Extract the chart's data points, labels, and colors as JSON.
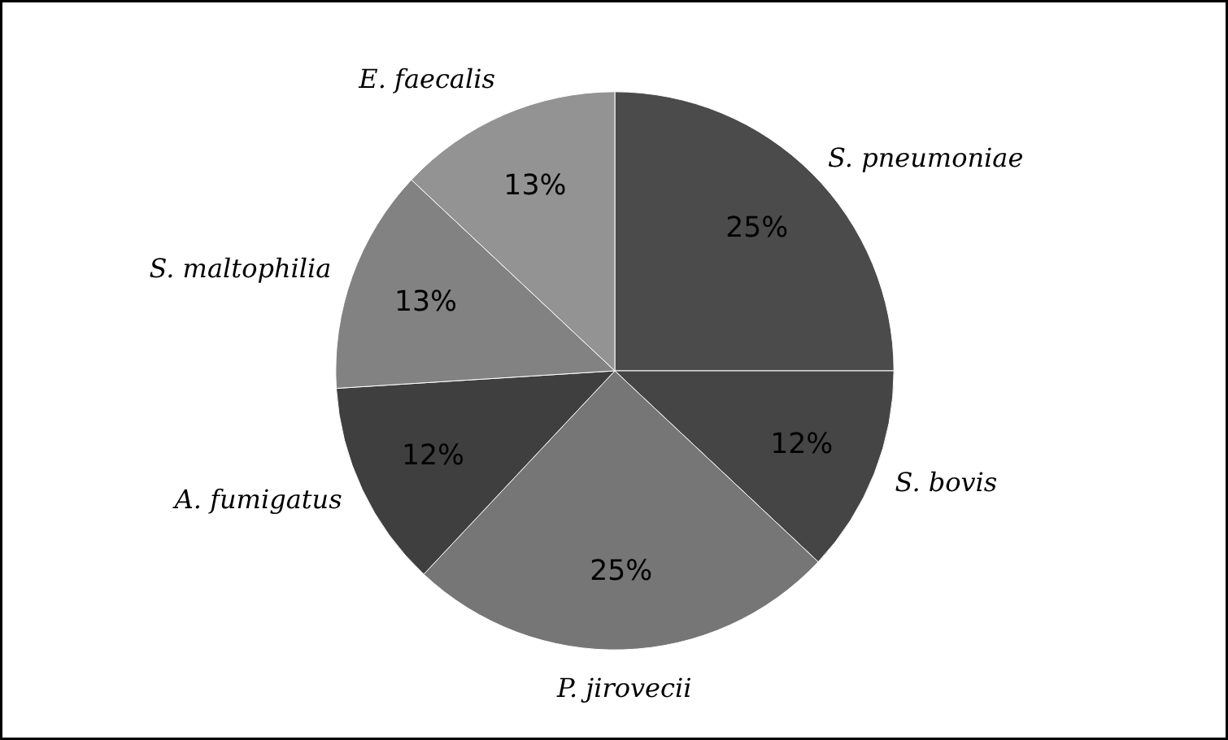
{
  "chart_data": {
    "type": "pie",
    "categories": [
      "S. pneumoniae",
      "S. bovis",
      "P. jirovecii",
      "A. fumigatus",
      "S. maltophilia",
      "E. faecalis"
    ],
    "values": [
      25,
      12,
      25,
      12,
      13,
      13
    ],
    "colors": [
      "#4b4b4b",
      "#454545",
      "#767676",
      "#3f3f3f",
      "#828282",
      "#939393"
    ],
    "value_labels": [
      "25%",
      "12%",
      "25%",
      "12%",
      "13%",
      "13%"
    ]
  }
}
